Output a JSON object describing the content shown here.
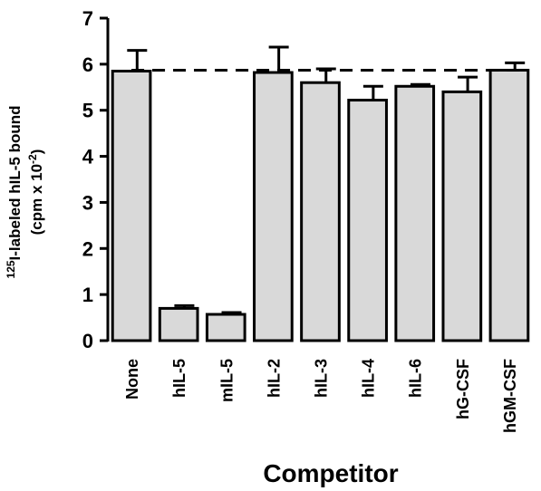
{
  "chart_data": {
    "type": "bar",
    "xlabel": "Competitor",
    "ylabel_line1_sup": "125",
    "ylabel_line1": "I-labeled hIL-5 bound",
    "ylabel_line2_pre": "(cpm x 10",
    "ylabel_line2_sup": "-2",
    "ylabel_line2_post": ")",
    "ylim": [
      0,
      7
    ],
    "yticks": [
      "0",
      "1",
      "2",
      "3",
      "4",
      "5",
      "6",
      "7"
    ],
    "categories": [
      "None",
      "hIL-5",
      "mIL-5",
      "hIL-2",
      "hIL-3",
      "hIL-4",
      "hIL-6",
      "hG-CSF",
      "hGM-CSF"
    ],
    "values": [
      5.85,
      0.7,
      0.57,
      5.82,
      5.6,
      5.22,
      5.52,
      5.4,
      5.87
    ],
    "errors": [
      0.45,
      0.06,
      0.04,
      0.55,
      0.3,
      0.3,
      0.04,
      0.32,
      0.16
    ],
    "reference_line": 5.87,
    "bar_fill": "#d9d9d9",
    "bar_stroke": "#000000"
  }
}
